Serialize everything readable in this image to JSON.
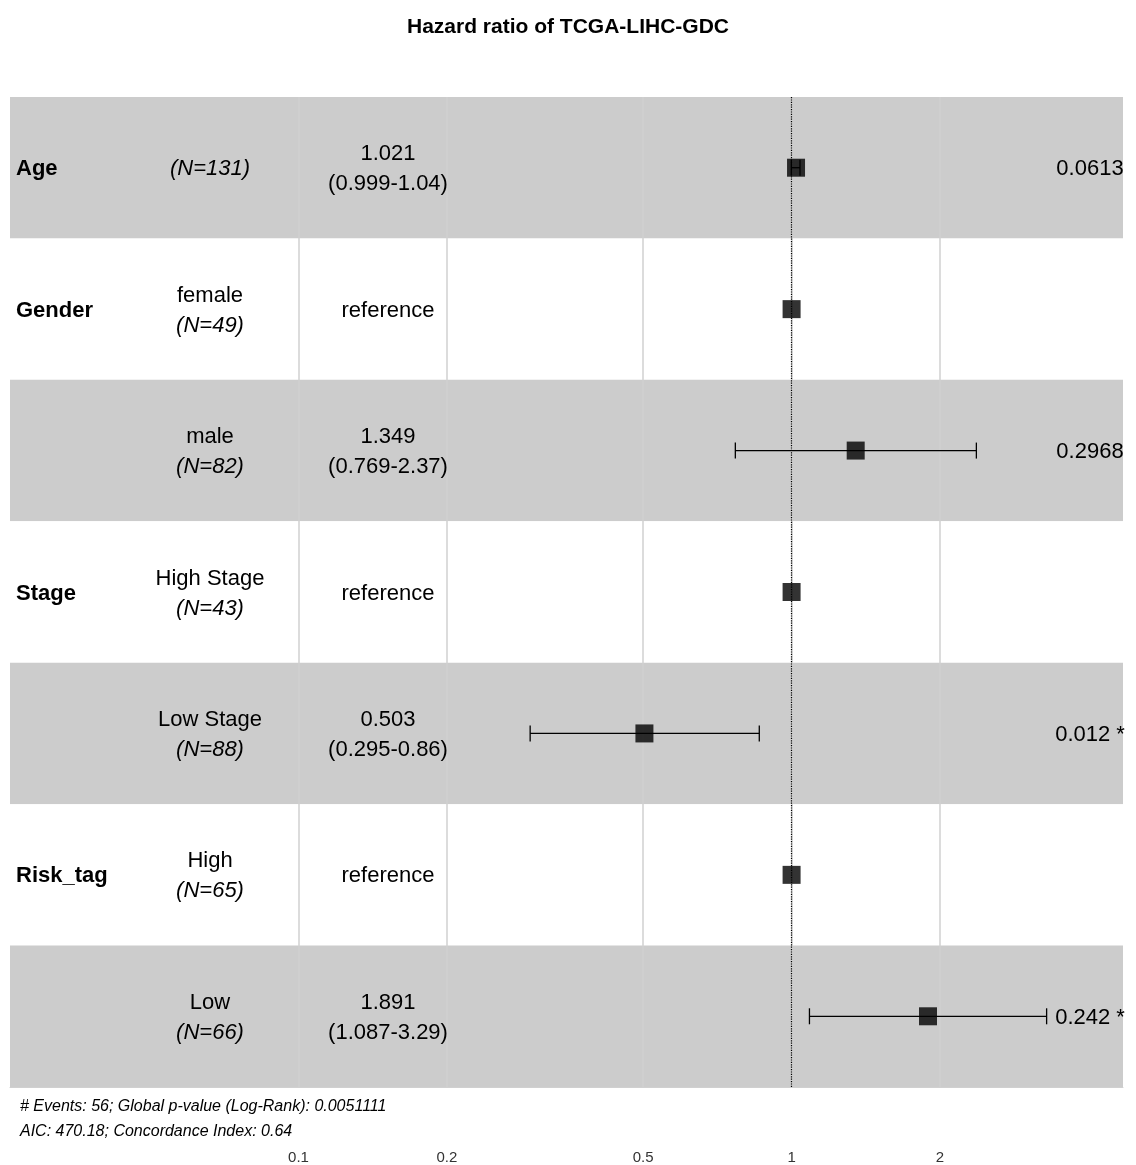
{
  "chart_data": {
    "type": "scatter",
    "title": "Hazard ratio of TCGA-LIHC-GDC",
    "orientation": "horizontal",
    "categories": [
      "(N=131)",
      "female\n(N=49)",
      "male\n(N=82)",
      "High Stage\n(N=43)",
      "Low Stage\n(N=88)",
      "High\n(N=65)",
      "Low\n(N=66)"
    ],
    "values": [
      1.021,
      1,
      1.349,
      1,
      0.503,
      1,
      1.891
    ],
    "errors": [
      [
        0.999,
        1.04
      ],
      null,
      [
        0.769,
        2.37
      ],
      null,
      [
        0.295,
        0.86
      ],
      null,
      [
        1.087,
        3.29
      ]
    ],
    "color": "#000000",
    "marker": "square",
    "log": "x",
    "xlim": [
      0.026,
      4.7
    ],
    "xticks": [
      0.1,
      0.2,
      0.5,
      1,
      2
    ],
    "grid": "x",
    "ref_lines": [
      {
        "axis": "x",
        "value": 1,
        "line_style": "dotted",
        "color": "#000000"
      }
    ],
    "annotations": [
      "Age",
      "Gender",
      "Stage",
      "Risk_tag",
      "0.0613",
      "0.2968",
      "0.012 *",
      "0.242 *",
      "1.021\n(0.999-1.04)",
      "reference",
      "1.349\n(0.769-2.37)",
      "reference",
      "0.503\n(0.295-0.86)",
      "reference",
      "1.891\n(1.087-3.29)",
      "# Events: 56; Global p-value (Log-Rank): 0.0051111",
      "AIC: 470.18; Concordance Index: 0.64"
    ]
  }
}
